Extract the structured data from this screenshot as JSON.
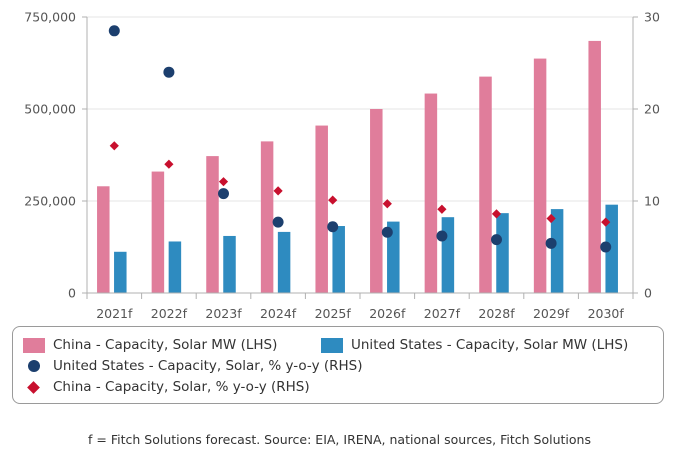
{
  "chart_data": {
    "type": "bar",
    "categories": [
      "2021f",
      "2022f",
      "2023f",
      "2024f",
      "2025f",
      "2026f",
      "2027f",
      "2028f",
      "2029f",
      "2030f"
    ],
    "left_axis": {
      "ylim": [
        0,
        750000
      ],
      "ticks": [
        "0",
        "250,000",
        "500,000",
        "750,000"
      ],
      "tick_values": [
        0,
        250000,
        500000,
        750000
      ]
    },
    "right_axis": {
      "ylim": [
        0,
        30
      ],
      "ticks": [
        "0",
        "10",
        "20",
        "30"
      ],
      "tick_values": [
        0,
        10,
        20,
        30
      ]
    },
    "series": [
      {
        "name": "China - Capacity, Solar MW (LHS)",
        "kind": "bar",
        "axis": "left",
        "color": "#e07d9b",
        "values": [
          290000,
          330000,
          372000,
          412000,
          455000,
          500000,
          542000,
          588000,
          637000,
          685000
        ]
      },
      {
        "name": "United States - Capacity, Solar MW (LHS)",
        "kind": "bar",
        "axis": "left",
        "color": "#2e8bc0",
        "values": [
          112000,
          140000,
          155000,
          166000,
          182000,
          194000,
          206000,
          217000,
          228000,
          240000
        ]
      },
      {
        "name": "United States - Capacity, Solar, % y-o-y (RHS)",
        "kind": "scatter",
        "marker": "circle",
        "axis": "right",
        "color": "#1c3f6e",
        "values": [
          28.5,
          24.0,
          10.8,
          7.7,
          7.2,
          6.6,
          6.2,
          5.8,
          5.4,
          5.0
        ]
      },
      {
        "name": "China - Capacity, Solar, % y-o-y (RHS)",
        "kind": "scatter",
        "marker": "diamond",
        "axis": "right",
        "color": "#c8102e",
        "values": [
          16.0,
          14.0,
          12.1,
          11.1,
          10.1,
          9.7,
          9.1,
          8.6,
          8.1,
          7.7
        ]
      }
    ],
    "legend_placement": "bottom"
  },
  "footnote": "f = Fitch Solutions forecast. Source: EIA, IRENA, national sources, Fitch Solutions"
}
